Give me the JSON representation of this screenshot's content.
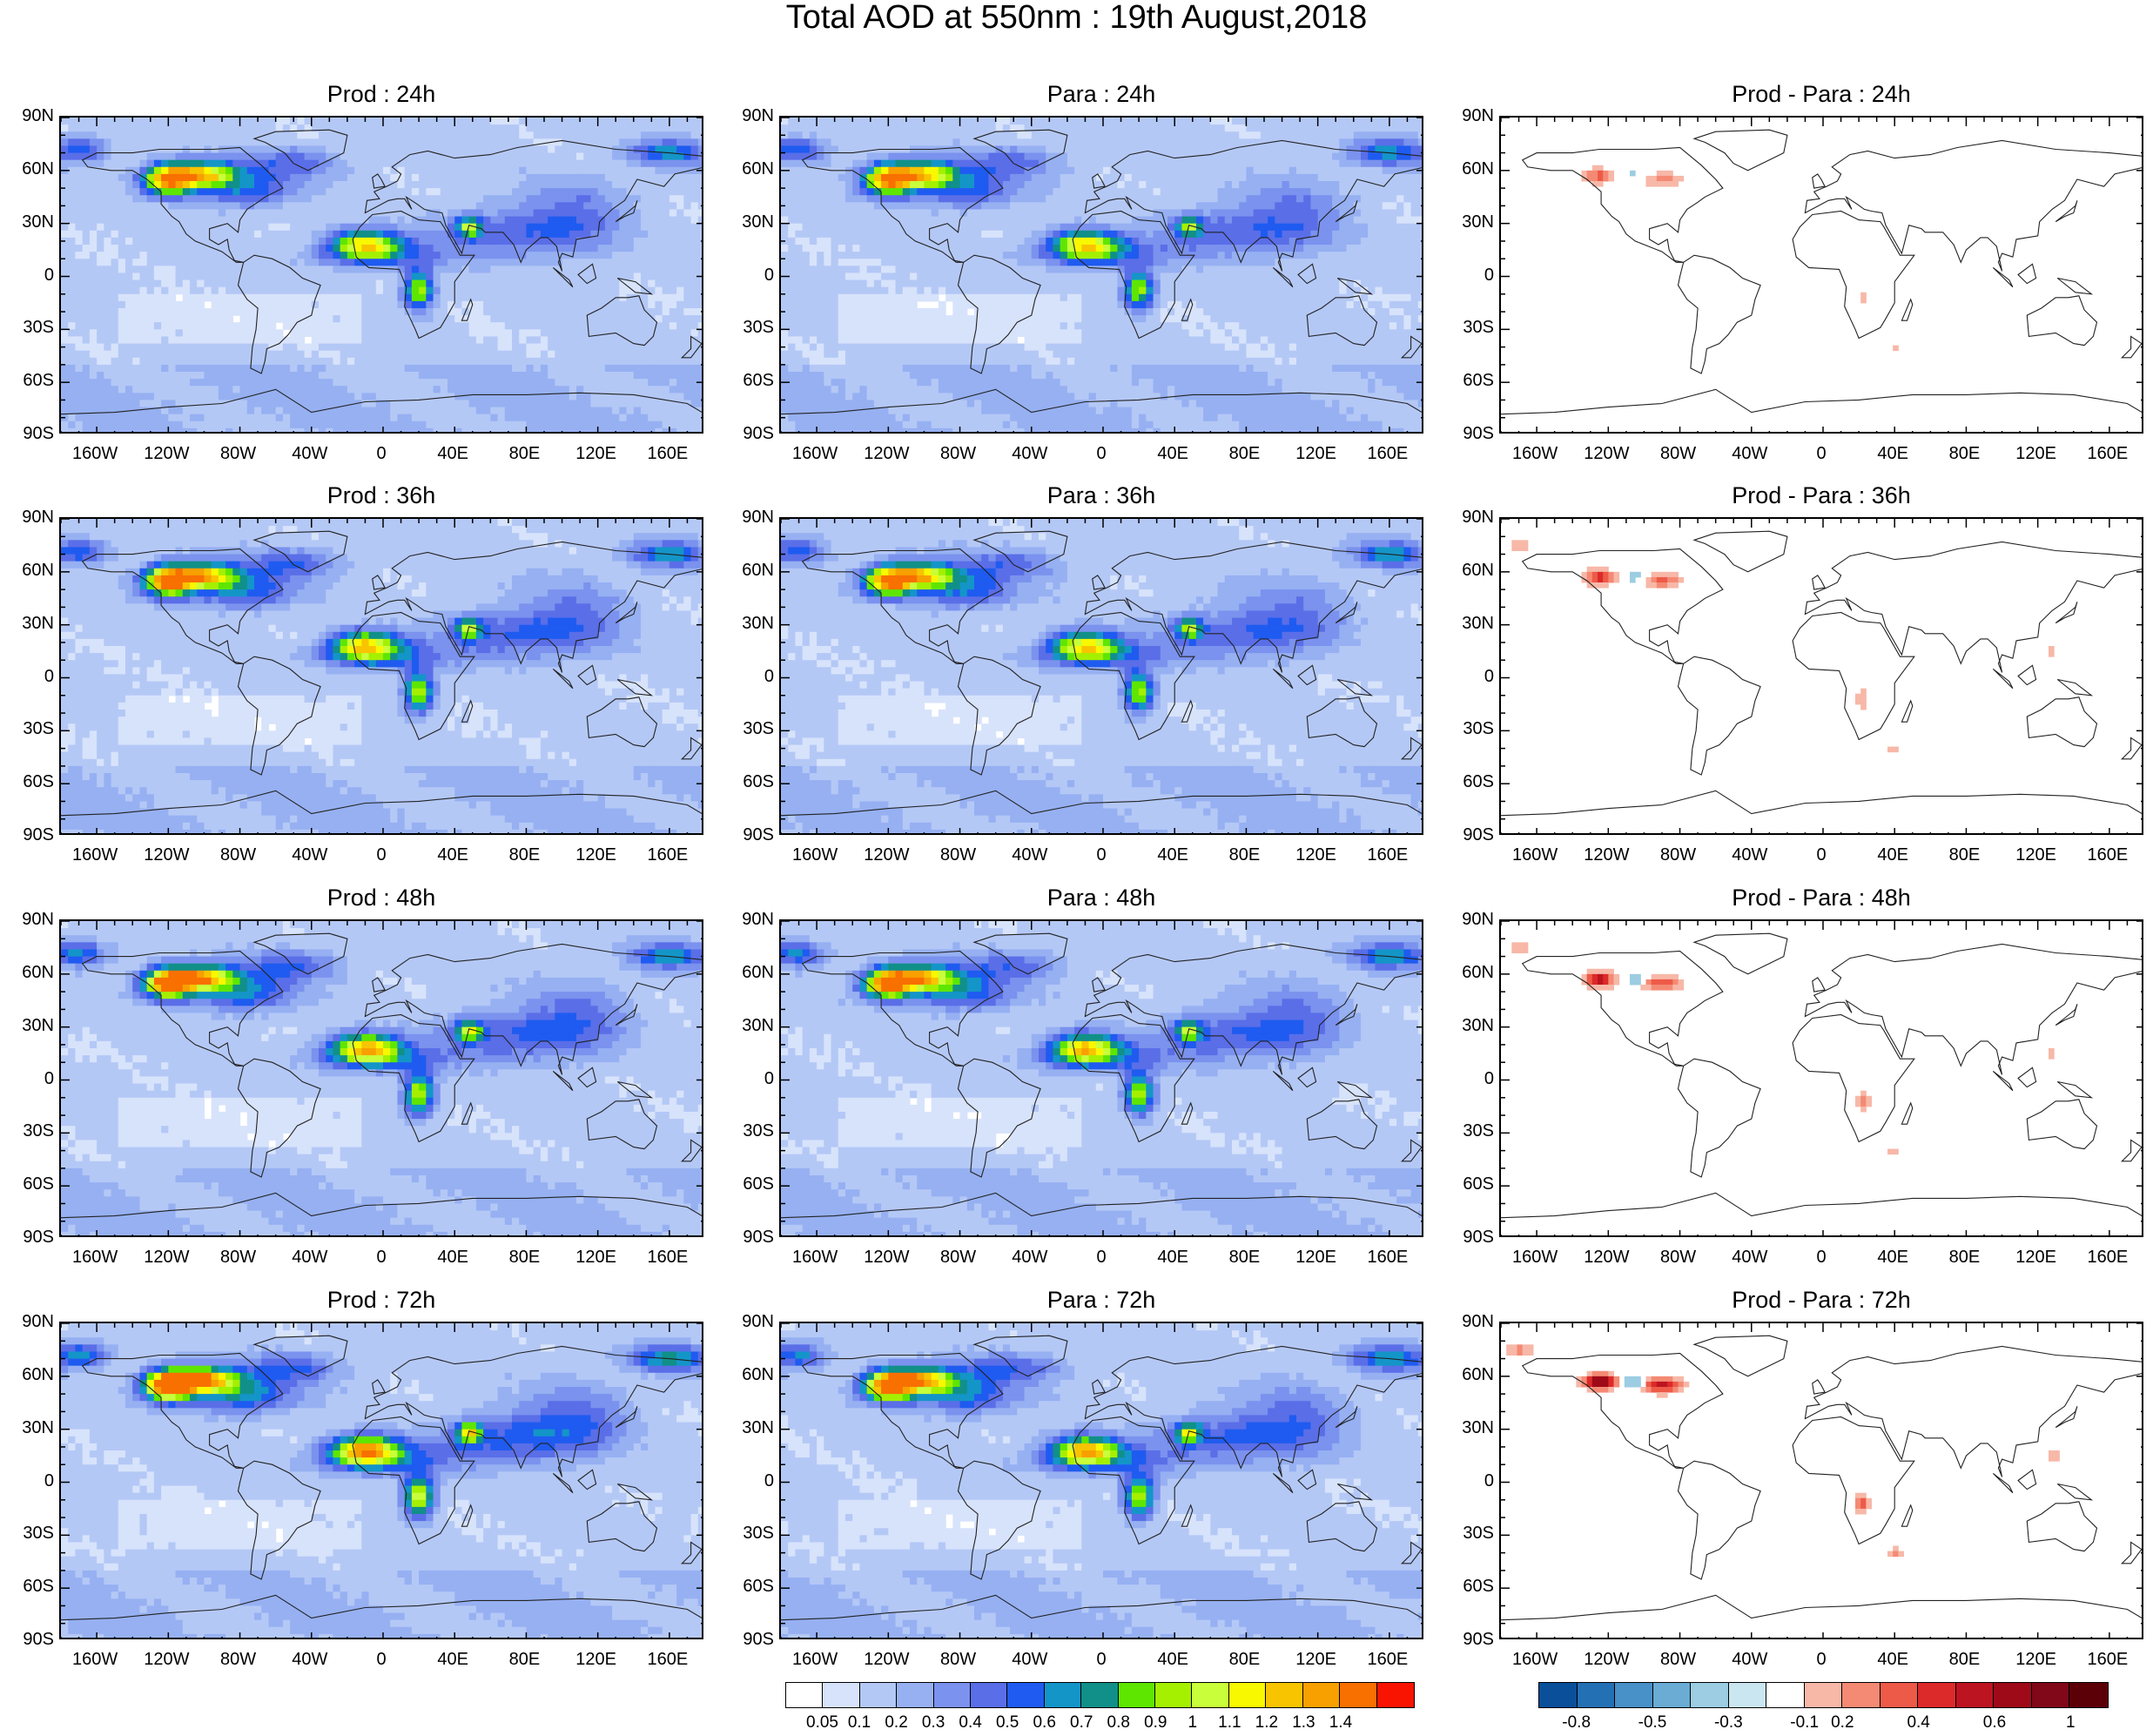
{
  "title": "Total AOD at 550nm : 19th August,2018",
  "panels": [
    {
      "title": "Prod : 24h",
      "kind": "aod",
      "intensity": 1.0,
      "row": 0,
      "col": 0
    },
    {
      "title": "Para : 24h",
      "kind": "aod",
      "intensity": 1.0,
      "row": 0,
      "col": 1
    },
    {
      "title": "Prod - Para : 24h",
      "kind": "diff",
      "intensity": 0.6,
      "row": 0,
      "col": 2
    },
    {
      "title": "Prod : 36h",
      "kind": "aod",
      "intensity": 1.05,
      "row": 1,
      "col": 0
    },
    {
      "title": "Para : 36h",
      "kind": "aod",
      "intensity": 1.0,
      "row": 1,
      "col": 1
    },
    {
      "title": "Prod - Para : 36h",
      "kind": "diff",
      "intensity": 0.8,
      "row": 1,
      "col": 2
    },
    {
      "title": "Prod : 48h",
      "kind": "aod",
      "intensity": 1.1,
      "row": 2,
      "col": 0
    },
    {
      "title": "Para : 48h",
      "kind": "aod",
      "intensity": 1.05,
      "row": 2,
      "col": 1
    },
    {
      "title": "Prod - Para : 48h",
      "kind": "diff",
      "intensity": 1.0,
      "row": 2,
      "col": 2
    },
    {
      "title": "Prod : 72h",
      "kind": "aod",
      "intensity": 1.2,
      "row": 3,
      "col": 0
    },
    {
      "title": "Para : 72h",
      "kind": "aod",
      "intensity": 1.1,
      "row": 3,
      "col": 1
    },
    {
      "title": "Prod - Para : 72h",
      "kind": "diff",
      "intensity": 1.4,
      "row": 3,
      "col": 2
    }
  ],
  "lat_labels": [
    "90N",
    "60N",
    "30N",
    "0",
    "30S",
    "60S",
    "90S"
  ],
  "lon_labels": [
    "160W",
    "120W",
    "80W",
    "40W",
    "0",
    "40E",
    "80E",
    "120E",
    "160E"
  ],
  "lon_values": [
    -160,
    -120,
    -80,
    -40,
    0,
    40,
    80,
    120,
    160
  ],
  "aod_colorbar": {
    "labels": [
      "0.05",
      "0.1",
      "0.2",
      "0.3",
      "0.4",
      "0.5",
      "0.6",
      "0.7",
      "0.8",
      "0.9",
      "1",
      "1.1",
      "1.2",
      "1.3",
      "1.4"
    ],
    "colors": [
      "#ffffff",
      "#d7e3fb",
      "#b4c8f6",
      "#96b0f2",
      "#7b92ee",
      "#5a6ee8",
      "#1f5bf0",
      "#1495c8",
      "#109088",
      "#5ee600",
      "#a4f000",
      "#c8ff3a",
      "#f8f800",
      "#f8c400",
      "#f8a000",
      "#f87000",
      "#f81400"
    ]
  },
  "diff_colorbar": {
    "labels": [
      "-0.8",
      "-0.5",
      "-0.3",
      "-0.1",
      "0.2",
      "0.4",
      "0.6",
      "1"
    ],
    "colors": [
      "#0a4f9a",
      "#2470b4",
      "#4890c8",
      "#6aacd4",
      "#9ccde2",
      "#cae6f0",
      "#ffffff",
      "#f7b8a8",
      "#f48a74",
      "#ee5a48",
      "#dc2a2a",
      "#bc1420",
      "#9e0a18",
      "#800818",
      "#5c0008"
    ]
  }
}
